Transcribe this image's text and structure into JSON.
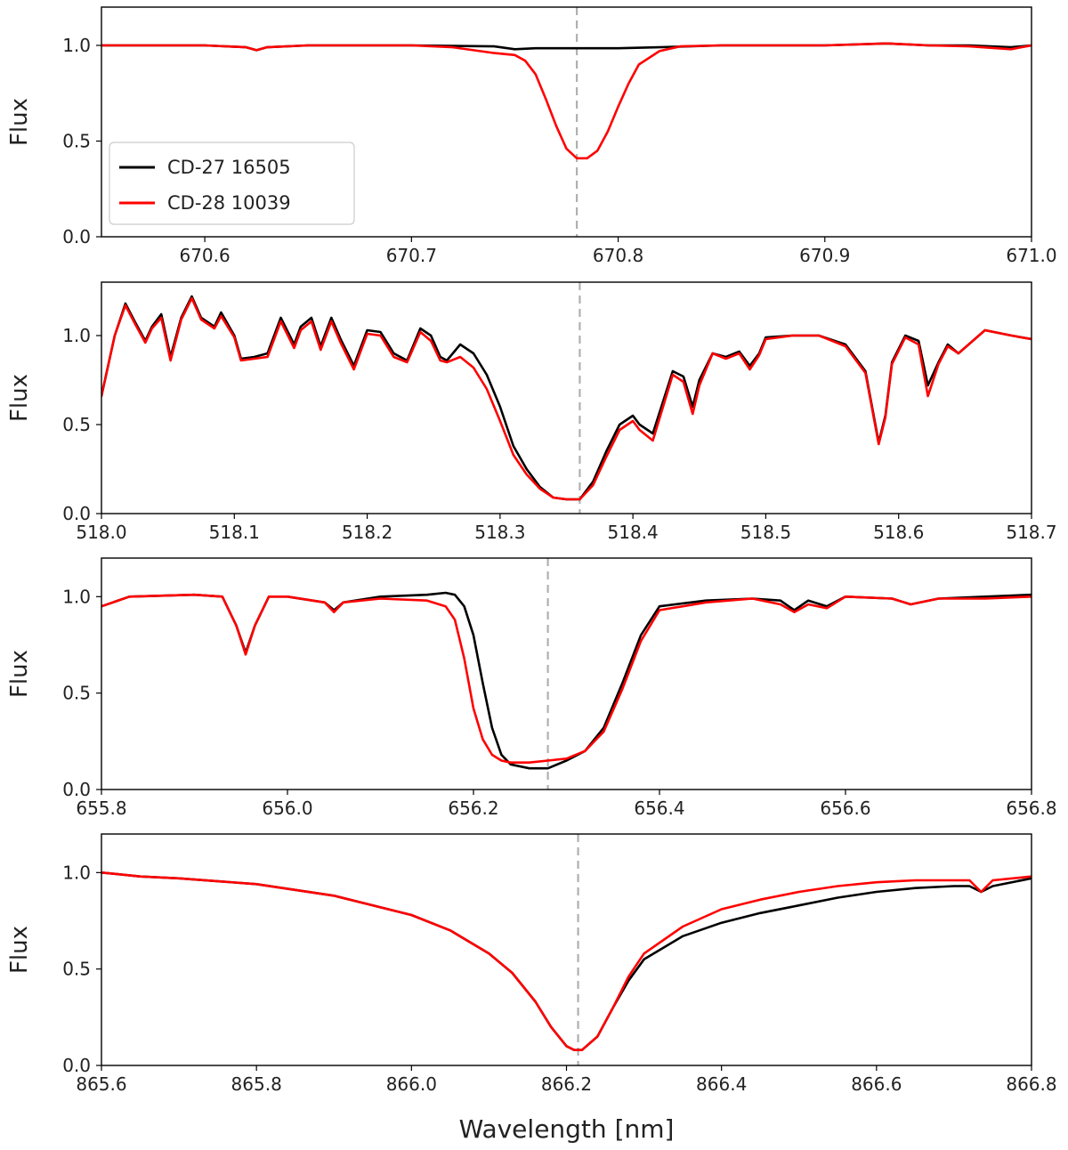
{
  "chart_data": [
    {
      "type": "line",
      "panel": 1,
      "ylabel": "Flux",
      "xlim": [
        670.55,
        671.0
      ],
      "ylim": [
        0.0,
        1.2
      ],
      "xticks": [
        670.6,
        670.7,
        670.8,
        670.9,
        671.0
      ],
      "xtick_labels": [
        "670.6",
        "670.7",
        "670.8",
        "670.9",
        "671.0"
      ],
      "yticks": [
        0.0,
        0.5,
        1.0
      ],
      "ytick_labels": [
        "0.0",
        "0.5",
        "1.0"
      ],
      "reference_line": 670.78,
      "legend": {
        "placement": "bottom-left",
        "entries": [
          "CD-27 16505",
          "CD-28 10039"
        ]
      },
      "series": [
        {
          "name": "CD-27 16505",
          "color": "#000000",
          "x": [
            670.55,
            670.58,
            670.6,
            670.62,
            670.625,
            670.63,
            670.65,
            670.7,
            670.74,
            670.75,
            670.76,
            670.78,
            670.8,
            670.82,
            670.85,
            670.9,
            670.93,
            670.95,
            670.97,
            670.99,
            671.0
          ],
          "y": [
            1.0,
            1.0,
            1.0,
            0.99,
            0.975,
            0.99,
            1.0,
            1.0,
            0.995,
            0.98,
            0.985,
            0.985,
            0.985,
            0.99,
            1.0,
            1.0,
            1.01,
            1.0,
            1.0,
            0.99,
            1.0
          ]
        },
        {
          "name": "CD-28 10039",
          "color": "#ff0000",
          "x": [
            670.55,
            670.58,
            670.6,
            670.62,
            670.625,
            670.63,
            670.65,
            670.7,
            670.72,
            670.74,
            670.75,
            670.755,
            670.76,
            670.765,
            670.77,
            670.775,
            670.78,
            670.785,
            670.79,
            670.795,
            670.8,
            670.805,
            670.81,
            670.82,
            670.83,
            670.85,
            670.9,
            670.93,
            670.95,
            670.97,
            670.99,
            671.0
          ],
          "y": [
            1.0,
            1.0,
            1.0,
            0.99,
            0.975,
            0.99,
            1.0,
            1.0,
            0.99,
            0.96,
            0.95,
            0.92,
            0.85,
            0.72,
            0.58,
            0.46,
            0.41,
            0.41,
            0.45,
            0.55,
            0.68,
            0.8,
            0.9,
            0.97,
            0.995,
            1.0,
            1.0,
            1.01,
            1.0,
            0.995,
            0.98,
            1.0
          ]
        }
      ]
    },
    {
      "type": "line",
      "panel": 2,
      "ylabel": "Flux",
      "xlim": [
        518.0,
        518.7
      ],
      "ylim": [
        0.0,
        1.3
      ],
      "xticks": [
        518.0,
        518.1,
        518.2,
        518.3,
        518.4,
        518.5,
        518.6,
        518.7
      ],
      "xtick_labels": [
        "518.0",
        "518.1",
        "518.2",
        "518.3",
        "518.4",
        "518.5",
        "518.6",
        "518.7"
      ],
      "yticks": [
        0.0,
        0.5,
        1.0
      ],
      "ytick_labels": [
        "0.0",
        "0.5",
        "1.0"
      ],
      "reference_line": 518.36,
      "series": [
        {
          "name": "CD-27 16505",
          "color": "#000000",
          "x": [
            518.0,
            518.01,
            518.018,
            518.025,
            518.033,
            518.038,
            518.045,
            518.052,
            518.06,
            518.068,
            518.075,
            518.085,
            518.09,
            518.1,
            518.105,
            518.115,
            518.125,
            518.135,
            518.145,
            518.15,
            518.158,
            518.165,
            518.173,
            518.18,
            518.19,
            518.2,
            518.21,
            518.22,
            518.23,
            518.24,
            518.248,
            518.255,
            518.26,
            518.27,
            518.28,
            518.29,
            518.3,
            518.31,
            518.32,
            518.33,
            518.34,
            518.35,
            518.36,
            518.37,
            518.38,
            518.39,
            518.4,
            518.405,
            518.415,
            518.43,
            518.438,
            518.445,
            518.45,
            518.46,
            518.47,
            518.48,
            518.488,
            518.495,
            518.5,
            518.52,
            518.54,
            518.56,
            518.575,
            518.585,
            518.59,
            518.595,
            518.605,
            518.615,
            518.622,
            518.63,
            518.637,
            518.645,
            518.665,
            518.685,
            518.7
          ],
          "y": [
            0.66,
            1.0,
            1.18,
            1.08,
            0.97,
            1.05,
            1.12,
            0.88,
            1.1,
            1.22,
            1.1,
            1.05,
            1.13,
            1.0,
            0.87,
            0.88,
            0.9,
            1.1,
            0.95,
            1.05,
            1.1,
            0.94,
            1.1,
            0.98,
            0.83,
            1.03,
            1.02,
            0.9,
            0.86,
            1.04,
            1.0,
            0.88,
            0.86,
            0.95,
            0.9,
            0.78,
            0.6,
            0.38,
            0.25,
            0.15,
            0.09,
            0.08,
            0.08,
            0.18,
            0.35,
            0.5,
            0.55,
            0.5,
            0.45,
            0.8,
            0.77,
            0.6,
            0.75,
            0.9,
            0.88,
            0.91,
            0.83,
            0.9,
            0.99,
            1.0,
            1.0,
            0.95,
            0.8,
            0.4,
            0.55,
            0.85,
            1.0,
            0.97,
            0.72,
            0.85,
            0.95,
            0.9,
            1.03,
            1.0,
            0.98
          ]
        },
        {
          "name": "CD-28 10039",
          "color": "#ff0000",
          "x": [
            518.0,
            518.01,
            518.018,
            518.025,
            518.033,
            518.038,
            518.045,
            518.052,
            518.06,
            518.068,
            518.075,
            518.085,
            518.09,
            518.1,
            518.105,
            518.115,
            518.125,
            518.135,
            518.145,
            518.15,
            518.158,
            518.165,
            518.173,
            518.18,
            518.19,
            518.2,
            518.21,
            518.22,
            518.23,
            518.24,
            518.248,
            518.255,
            518.26,
            518.27,
            518.28,
            518.29,
            518.3,
            518.31,
            518.32,
            518.33,
            518.34,
            518.35,
            518.36,
            518.37,
            518.38,
            518.39,
            518.4,
            518.405,
            518.415,
            518.43,
            518.438,
            518.445,
            518.45,
            518.46,
            518.47,
            518.48,
            518.488,
            518.495,
            518.5,
            518.52,
            518.54,
            518.56,
            518.575,
            518.585,
            518.59,
            518.595,
            518.605,
            518.615,
            518.622,
            518.63,
            518.637,
            518.645,
            518.665,
            518.685,
            518.7
          ],
          "y": [
            0.66,
            1.0,
            1.17,
            1.07,
            0.96,
            1.04,
            1.1,
            0.86,
            1.09,
            1.21,
            1.09,
            1.04,
            1.11,
            0.99,
            0.86,
            0.87,
            0.88,
            1.08,
            0.93,
            1.03,
            1.08,
            0.92,
            1.08,
            0.96,
            0.81,
            1.01,
            1.0,
            0.88,
            0.85,
            1.02,
            0.97,
            0.86,
            0.85,
            0.88,
            0.82,
            0.7,
            0.52,
            0.33,
            0.22,
            0.14,
            0.09,
            0.08,
            0.08,
            0.16,
            0.32,
            0.47,
            0.52,
            0.47,
            0.41,
            0.78,
            0.74,
            0.56,
            0.72,
            0.9,
            0.87,
            0.9,
            0.81,
            0.89,
            0.98,
            1.0,
            1.0,
            0.94,
            0.79,
            0.39,
            0.54,
            0.84,
            0.99,
            0.95,
            0.66,
            0.84,
            0.94,
            0.9,
            1.03,
            1.0,
            0.98
          ]
        }
      ]
    },
    {
      "type": "line",
      "panel": 3,
      "ylabel": "Flux",
      "xlim": [
        655.8,
        656.8
      ],
      "ylim": [
        0.0,
        1.2
      ],
      "xticks": [
        655.8,
        656.0,
        656.2,
        656.4,
        656.6,
        656.8
      ],
      "xtick_labels": [
        "655.8",
        "656.0",
        "656.2",
        "656.4",
        "656.6",
        "656.8"
      ],
      "yticks": [
        0.0,
        0.5,
        1.0
      ],
      "ytick_labels": [
        "0.0",
        "0.5",
        "1.0"
      ],
      "reference_line": 656.28,
      "series": [
        {
          "name": "CD-27 16505",
          "color": "#000000",
          "x": [
            655.8,
            655.83,
            655.9,
            655.93,
            655.945,
            655.955,
            655.965,
            655.98,
            656.0,
            656.04,
            656.05,
            656.06,
            656.1,
            656.15,
            656.17,
            656.18,
            656.19,
            656.2,
            656.21,
            656.22,
            656.23,
            656.24,
            656.26,
            656.28,
            656.3,
            656.32,
            656.34,
            656.36,
            656.38,
            656.4,
            656.45,
            656.5,
            656.53,
            656.545,
            656.56,
            656.58,
            656.6,
            656.65,
            656.67,
            656.7,
            656.75,
            656.8
          ],
          "y": [
            0.95,
            1.0,
            1.01,
            1.0,
            0.85,
            0.71,
            0.85,
            1.0,
            1.0,
            0.97,
            0.93,
            0.97,
            1.0,
            1.01,
            1.02,
            1.01,
            0.95,
            0.8,
            0.55,
            0.32,
            0.18,
            0.13,
            0.11,
            0.11,
            0.15,
            0.2,
            0.32,
            0.55,
            0.8,
            0.95,
            0.98,
            0.99,
            0.98,
            0.93,
            0.98,
            0.95,
            1.0,
            0.99,
            0.96,
            0.99,
            1.0,
            1.01
          ]
        },
        {
          "name": "CD-28 10039",
          "color": "#ff0000",
          "x": [
            655.8,
            655.83,
            655.9,
            655.93,
            655.945,
            655.955,
            655.965,
            655.98,
            656.0,
            656.04,
            656.05,
            656.06,
            656.1,
            656.15,
            656.17,
            656.18,
            656.19,
            656.2,
            656.21,
            656.22,
            656.23,
            656.24,
            656.26,
            656.28,
            656.3,
            656.32,
            656.34,
            656.36,
            656.38,
            656.4,
            656.45,
            656.5,
            656.53,
            656.545,
            656.56,
            656.58,
            656.6,
            656.65,
            656.67,
            656.7,
            656.75,
            656.8
          ],
          "y": [
            0.95,
            1.0,
            1.01,
            1.0,
            0.85,
            0.7,
            0.85,
            1.0,
            1.0,
            0.97,
            0.92,
            0.97,
            0.99,
            0.98,
            0.95,
            0.88,
            0.68,
            0.42,
            0.26,
            0.18,
            0.15,
            0.14,
            0.14,
            0.15,
            0.16,
            0.2,
            0.3,
            0.52,
            0.77,
            0.93,
            0.97,
            0.99,
            0.96,
            0.92,
            0.96,
            0.94,
            1.0,
            0.99,
            0.96,
            0.99,
            0.99,
            1.0
          ]
        }
      ]
    },
    {
      "type": "line",
      "panel": 4,
      "ylabel": "Flux",
      "xlabel": "Wavelength [nm]",
      "xlim": [
        865.6,
        866.8
      ],
      "ylim": [
        0.0,
        1.2
      ],
      "xticks": [
        865.6,
        865.8,
        866.0,
        866.2,
        866.4,
        866.6,
        866.8
      ],
      "xtick_labels": [
        "865.6",
        "865.8",
        "866.0",
        "866.2",
        "866.4",
        "866.6",
        "866.8"
      ],
      "yticks": [
        0.0,
        0.5,
        1.0
      ],
      "ytick_labels": [
        "0.0",
        "0.5",
        "1.0"
      ],
      "reference_line": 866.215,
      "series": [
        {
          "name": "CD-27 16505",
          "color": "#000000",
          "x": [
            865.6,
            865.65,
            865.7,
            865.8,
            865.9,
            866.0,
            866.05,
            866.1,
            866.13,
            866.16,
            866.18,
            866.2,
            866.21,
            866.22,
            866.24,
            866.26,
            866.28,
            866.3,
            866.35,
            866.4,
            866.45,
            866.5,
            866.55,
            866.6,
            866.65,
            866.7,
            866.72,
            866.735,
            866.75,
            866.8
          ],
          "y": [
            1.0,
            0.98,
            0.97,
            0.94,
            0.88,
            0.78,
            0.7,
            0.58,
            0.48,
            0.33,
            0.2,
            0.1,
            0.08,
            0.08,
            0.15,
            0.3,
            0.44,
            0.55,
            0.67,
            0.74,
            0.79,
            0.83,
            0.87,
            0.9,
            0.92,
            0.93,
            0.93,
            0.9,
            0.93,
            0.97
          ]
        },
        {
          "name": "CD-28 10039",
          "color": "#ff0000",
          "x": [
            865.6,
            865.65,
            865.7,
            865.8,
            865.9,
            866.0,
            866.05,
            866.1,
            866.13,
            866.16,
            866.18,
            866.2,
            866.21,
            866.22,
            866.24,
            866.26,
            866.28,
            866.3,
            866.35,
            866.4,
            866.45,
            866.5,
            866.55,
            866.6,
            866.65,
            866.7,
            866.72,
            866.735,
            866.75,
            866.8
          ],
          "y": [
            1.0,
            0.98,
            0.97,
            0.94,
            0.88,
            0.78,
            0.7,
            0.58,
            0.48,
            0.33,
            0.2,
            0.1,
            0.08,
            0.08,
            0.15,
            0.3,
            0.46,
            0.58,
            0.72,
            0.81,
            0.86,
            0.9,
            0.93,
            0.95,
            0.96,
            0.96,
            0.96,
            0.9,
            0.96,
            0.98
          ]
        }
      ]
    }
  ]
}
